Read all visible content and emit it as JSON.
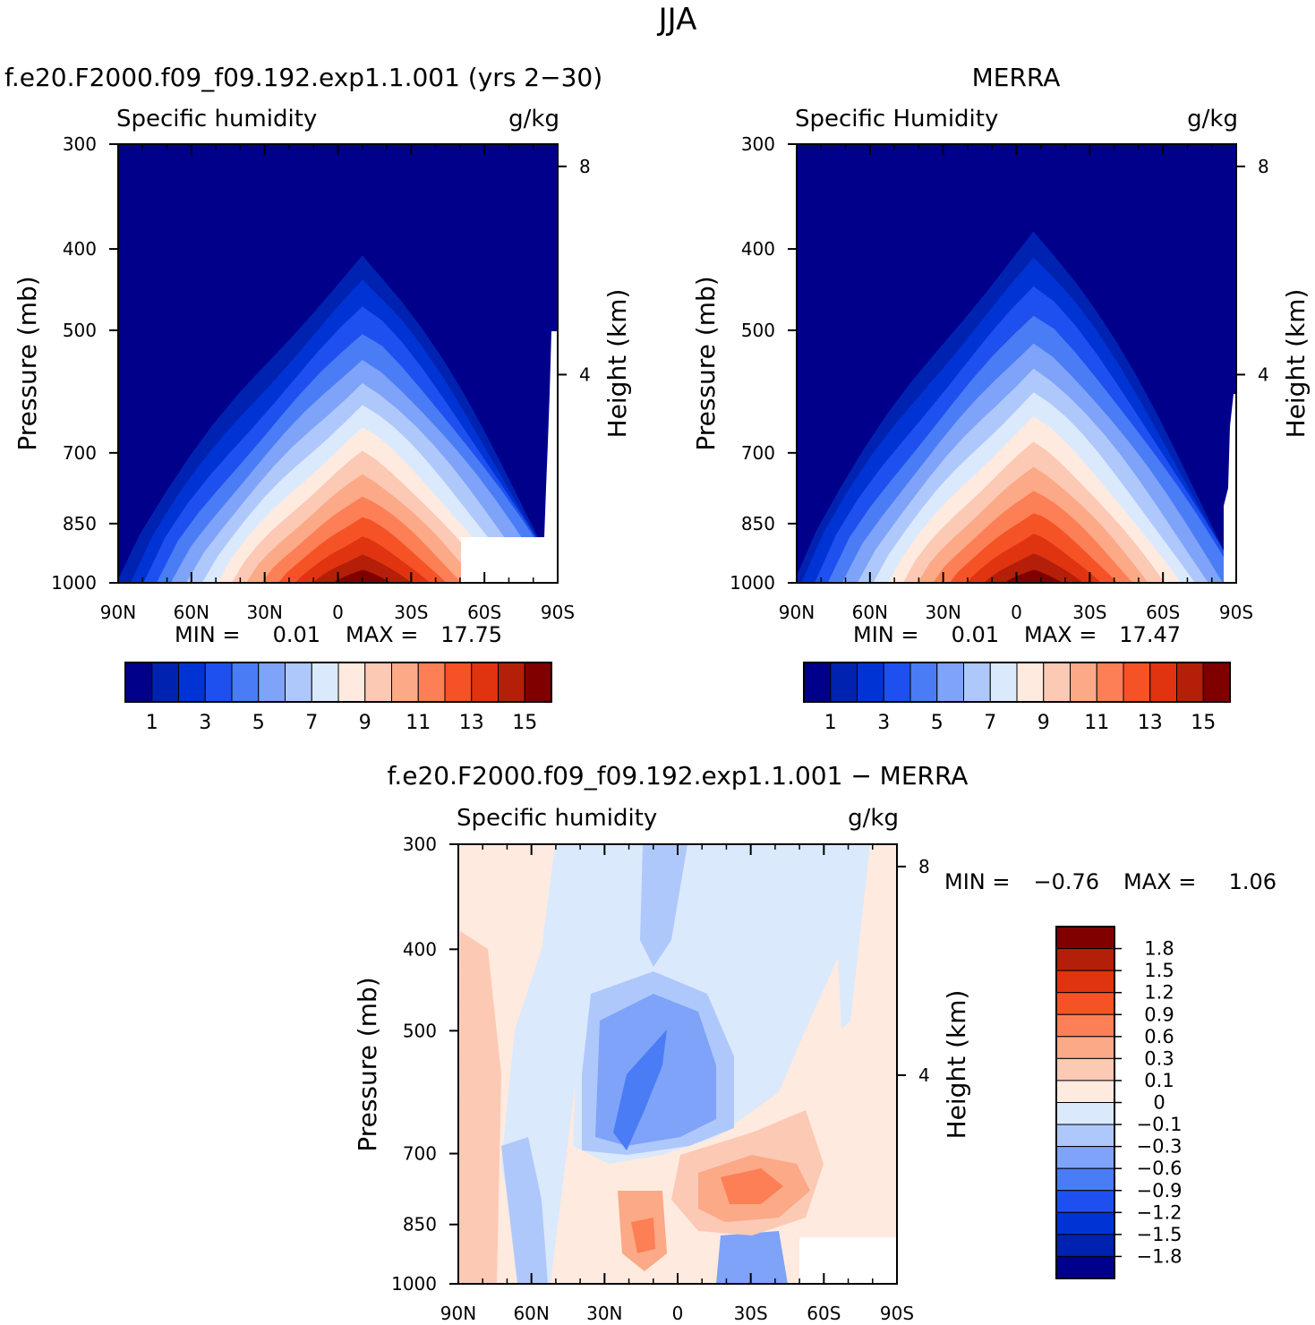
{
  "page": {
    "title": "JJA"
  },
  "panels": {
    "model": {
      "heading": "f.e20.F2000.f09_f09.192.exp1.1.001 (yrs 2−30)",
      "left_label": "Specific humidity",
      "right_label": "g/kg",
      "min_label": "MIN =",
      "min_value": "0.01",
      "max_label": "MAX =",
      "max_value": "17.75"
    },
    "obs": {
      "heading": "MERRA",
      "left_label": "Specific Humidity",
      "right_label": "g/kg",
      "min_label": "MIN =",
      "min_value": "0.01",
      "max_label": "MAX =",
      "max_value": "17.47"
    },
    "diff": {
      "heading": "f.e20.F2000.f09_f09.192.exp1.1.001 − MERRA",
      "left_label": "Specific humidity",
      "right_label": "g/kg",
      "min_label": "MIN =",
      "min_value": "−0.76",
      "max_label": "MAX =",
      "max_value": "1.06"
    }
  },
  "colors": {
    "abs_scale": [
      "#00008b",
      "#0022b0",
      "#0033d4",
      "#1e50f0",
      "#4a7cf5",
      "#7ea3f8",
      "#afc8fb",
      "#dbe9fc",
      "#ffeadf",
      "#fcc9b4",
      "#fba987",
      "#fc7f56",
      "#f55226",
      "#e03310",
      "#b31f08",
      "#800000"
    ],
    "diff_scale": [
      "#00008b",
      "#0022b0",
      "#0033d4",
      "#1e50f0",
      "#4a7cf5",
      "#7ea3f8",
      "#afc8fb",
      "#dbe9fc",
      "#ffeadf",
      "#fcc9b4",
      "#fba987",
      "#fc7f56",
      "#f55226",
      "#e03310",
      "#b31f08",
      "#800000"
    ]
  },
  "chart_data": [
    {
      "type": "heatmap",
      "id": "model",
      "title": "Specific humidity",
      "units": "g/kg",
      "xlabel": "",
      "ylabel": "Pressure (mb)",
      "y2label": "Height (km)",
      "x_ticks": [
        "90N",
        "60N",
        "30N",
        "0",
        "30S",
        "60S",
        "90S"
      ],
      "x_range": [
        90,
        -90
      ],
      "y_ticks": [
        "300",
        "400",
        "500",
        "700",
        "850",
        "1000"
      ],
      "y_range": [
        300,
        1000
      ],
      "y_scale": "log",
      "y2_ticks": [
        "8",
        "4"
      ],
      "min": 0.01,
      "max": 17.75,
      "levels": [
        1,
        2,
        3,
        4,
        5,
        6,
        7,
        8,
        9,
        10,
        11,
        12,
        13,
        14,
        15
      ],
      "colorbar_labels": [
        "1",
        "3",
        "5",
        "7",
        "9",
        "11",
        "13",
        "15"
      ],
      "field": {
        "peak_lat": -10,
        "peak_value": 17.75,
        "lat_width": 30,
        "top_altitude_km": 6.5
      }
    },
    {
      "type": "heatmap",
      "id": "obs",
      "title": "Specific Humidity",
      "units": "g/kg",
      "xlabel": "",
      "ylabel": "Pressure (mb)",
      "y2label": "Height (km)",
      "x_ticks": [
        "90N",
        "60N",
        "30N",
        "0",
        "30S",
        "60S",
        "90S"
      ],
      "x_range": [
        90,
        -90
      ],
      "y_ticks": [
        "300",
        "400",
        "500",
        "700",
        "850",
        "1000"
      ],
      "y_range": [
        300,
        1000
      ],
      "y_scale": "log",
      "y2_ticks": [
        "8",
        "4"
      ],
      "min": 0.01,
      "max": 17.47,
      "levels": [
        1,
        2,
        3,
        4,
        5,
        6,
        7,
        8,
        9,
        10,
        11,
        12,
        13,
        14,
        15
      ],
      "colorbar_labels": [
        "1",
        "3",
        "5",
        "7",
        "9",
        "11",
        "13",
        "15"
      ],
      "field": {
        "peak_lat": -7,
        "peak_value": 17.47,
        "lat_width": 30,
        "top_altitude_km": 7
      }
    },
    {
      "type": "heatmap",
      "id": "diff",
      "title": "Specific humidity",
      "units": "g/kg",
      "xlabel": "",
      "ylabel": "Pressure (mb)",
      "y2label": "Height (km)",
      "x_ticks": [
        "90N",
        "60N",
        "30N",
        "0",
        "30S",
        "60S",
        "90S"
      ],
      "x_range": [
        90,
        -90
      ],
      "y_ticks": [
        "300",
        "400",
        "500",
        "700",
        "850",
        "1000"
      ],
      "y_range": [
        300,
        1000
      ],
      "y_scale": "log",
      "y2_ticks": [
        "8",
        "4"
      ],
      "min": -0.76,
      "max": 1.06,
      "levels": [
        -1.8,
        -1.5,
        -1.2,
        -0.9,
        -0.6,
        -0.3,
        -0.1,
        0,
        0.1,
        0.3,
        0.6,
        0.9,
        1.2,
        1.5,
        1.8
      ],
      "colorbar_labels": [
        "1.8",
        "1.5",
        "1.2",
        "0.9",
        "0.6",
        "0.3",
        "0.1",
        "0",
        "−0.1",
        "−0.3",
        "−0.6",
        "−0.9",
        "−1.2",
        "−1.5",
        "−1.8"
      ]
    }
  ]
}
